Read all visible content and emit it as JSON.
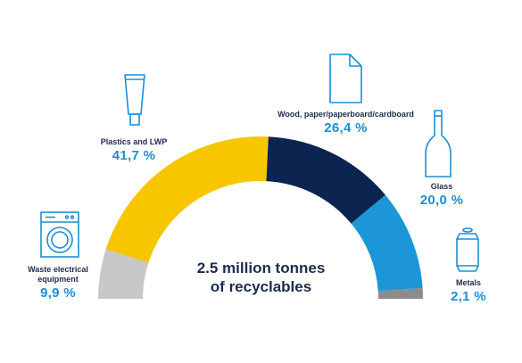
{
  "chart_data": {
    "type": "pie",
    "style": "semi-donut",
    "center_text": [
      "2.5 million tonnes",
      "of recyclables"
    ],
    "slices": [
      {
        "name": "Waste electrical equipment",
        "label_lines": [
          "Waste electrical",
          "equipment"
        ],
        "value": 9.9,
        "display": "9,9 %",
        "color": "#c8c8c8",
        "icon": "washing-machine-icon"
      },
      {
        "name": "Plastics and LWP",
        "label_lines": [
          "Plastics and LWP"
        ],
        "value": 41.7,
        "display": "41,7 %",
        "color": "#f7c600",
        "icon": "tube-icon"
      },
      {
        "name": "Wood, paper/paperboard/cardboard",
        "label_lines": [
          "Wood, paper/paperboard/cardboard"
        ],
        "value": 26.4,
        "display": "26,4 %",
        "color": "#0c2450",
        "icon": "document-icon"
      },
      {
        "name": "Glass",
        "label_lines": [
          "Glass"
        ],
        "value": 20.0,
        "display": "20,0 %",
        "color": "#1c96d6",
        "icon": "bottle-icon"
      },
      {
        "name": "Metals",
        "label_lines": [
          "Metals"
        ],
        "value": 2.1,
        "display": "2,1 %",
        "color": "#8c8c8c",
        "icon": "can-icon"
      }
    ],
    "icon_color": "#1a8fd4"
  }
}
